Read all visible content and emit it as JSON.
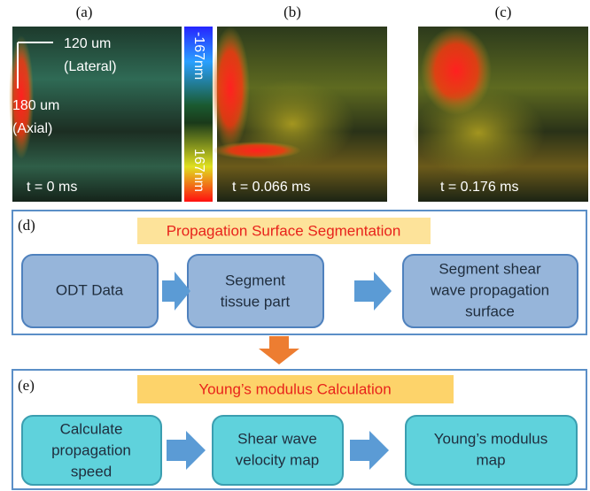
{
  "panels": [
    {
      "label": "(a)",
      "time": "t = 0 ms"
    },
    {
      "label": "(b)",
      "time": "t = 0.066 ms"
    },
    {
      "label": "(c)",
      "time": "t = 0.176 ms"
    }
  ],
  "scale_bar": {
    "lateral": [
      "120 um",
      "(Lateral)"
    ],
    "axial": [
      "180 um",
      "(Axial)"
    ]
  },
  "colorbar": {
    "top": "-167nm",
    "bottom": "167nm"
  },
  "sections": [
    {
      "label": "(d)",
      "title": "Propagation Surface Segmentation",
      "steps": [
        [
          "ODT Data"
        ],
        [
          "Segment",
          "tissue part"
        ],
        [
          "Segment shear",
          "wave propagation",
          "surface"
        ]
      ]
    },
    {
      "label": "(e)",
      "title": "Young’s modulus Calculation",
      "steps": [
        [
          "Calculate",
          "propagation",
          "speed"
        ],
        [
          "Shear wave",
          "velocity map"
        ],
        [
          "Young’s modulus",
          "map"
        ]
      ]
    }
  ]
}
